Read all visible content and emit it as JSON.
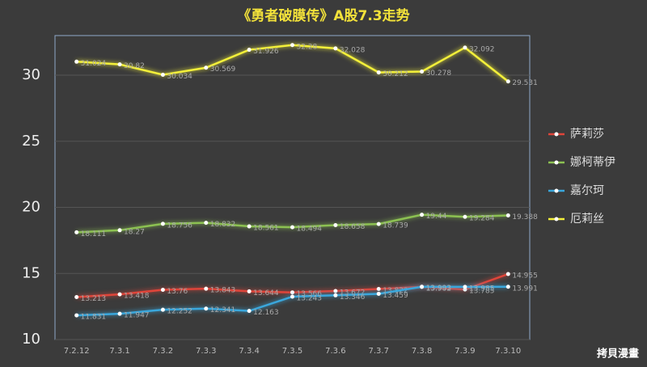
{
  "chart_data": {
    "type": "line",
    "title": "《勇者破膜传》A股7.3走势",
    "categories": [
      "7.2.12",
      "7.3.1",
      "7.3.2",
      "7.3.3",
      "7.3.4",
      "7.3.5",
      "7.3.6",
      "7.3.7",
      "7.3.8",
      "7.3.9",
      "7.3.10"
    ],
    "series": [
      {
        "name": "萨莉莎",
        "color": "#e0453a",
        "values": [
          13.213,
          13.418,
          13.76,
          13.843,
          13.644,
          13.566,
          13.672,
          13.822,
          13.982,
          13.785,
          14.955
        ]
      },
      {
        "name": "娜柯蒂伊",
        "color": "#8cc152",
        "values": [
          18.111,
          18.27,
          18.756,
          18.832,
          18.561,
          18.494,
          18.658,
          18.739,
          19.44,
          19.284,
          19.388
        ]
      },
      {
        "name": "嘉尔珂",
        "color": "#3aa7dc",
        "values": [
          11.831,
          11.947,
          12.252,
          12.341,
          12.163,
          13.243,
          13.346,
          13.459,
          13.993,
          13.985,
          13.991
        ]
      },
      {
        "name": "厄莉丝",
        "color": "#f3f03a",
        "values": [
          31.024,
          30.82,
          30.034,
          30.569,
          31.926,
          32.28,
          32.028,
          30.212,
          30.278,
          32.092,
          29.531
        ]
      }
    ],
    "ylim": [
      10,
      33
    ],
    "yticks": [
      10,
      15,
      20,
      25,
      30
    ],
    "grid": true,
    "legend": "right",
    "watermark": "拷貝漫畫"
  }
}
